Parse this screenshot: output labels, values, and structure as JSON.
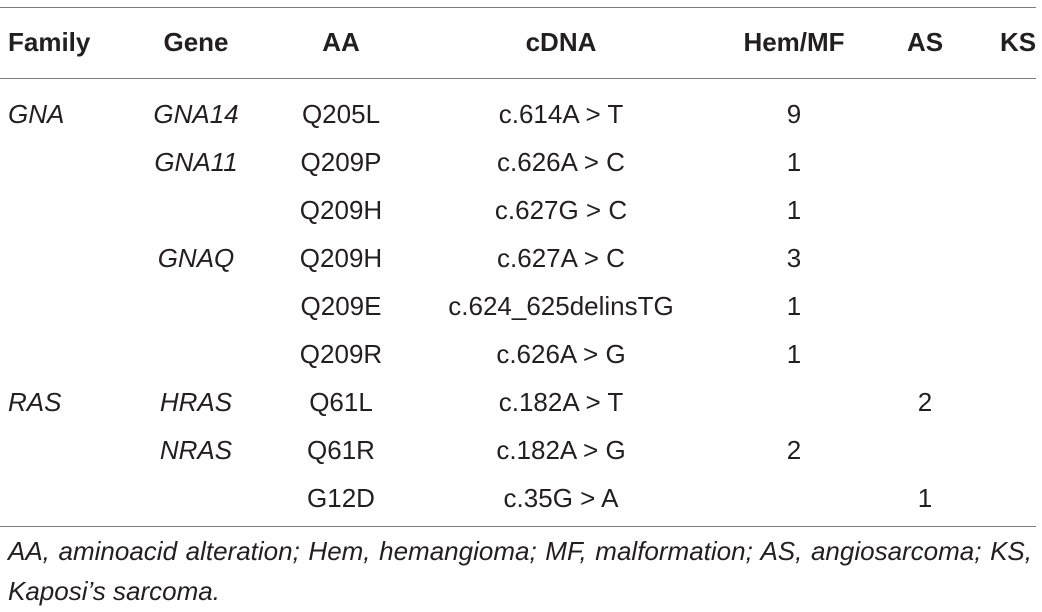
{
  "table": {
    "headers": {
      "family": "Family",
      "gene": "Gene",
      "aa": "AA",
      "cdna": "cDNA",
      "hem_mf": "Hem/MF",
      "as": "AS",
      "ks": "KS"
    },
    "rows": [
      {
        "family": "GNA",
        "gene": "GNA14",
        "aa": "Q205L",
        "cdna": "c.614A > T",
        "hem_mf": "9",
        "as": "",
        "ks": ""
      },
      {
        "family": "",
        "gene": "GNA11",
        "aa": "Q209P",
        "cdna": "c.626A > C",
        "hem_mf": "1",
        "as": "",
        "ks": ""
      },
      {
        "family": "",
        "gene": "",
        "aa": "Q209H",
        "cdna": "c.627G > C",
        "hem_mf": "1",
        "as": "",
        "ks": ""
      },
      {
        "family": "",
        "gene": "GNAQ",
        "aa": "Q209H",
        "cdna": "c.627A > C",
        "hem_mf": "3",
        "as": "",
        "ks": ""
      },
      {
        "family": "",
        "gene": "",
        "aa": "Q209E",
        "cdna": "c.624_625delinsTG",
        "hem_mf": "1",
        "as": "",
        "ks": ""
      },
      {
        "family": "",
        "gene": "",
        "aa": "Q209R",
        "cdna": "c.626A > G",
        "hem_mf": "1",
        "as": "",
        "ks": ""
      },
      {
        "family": "RAS",
        "gene": "HRAS",
        "aa": "Q61L",
        "cdna": "c.182A > T",
        "hem_mf": "",
        "as": "2",
        "ks": ""
      },
      {
        "family": "",
        "gene": "NRAS",
        "aa": "Q61R",
        "cdna": "c.182A > G",
        "hem_mf": "2",
        "as": "",
        "ks": ""
      },
      {
        "family": "",
        "gene": "",
        "aa": "G12D",
        "cdna": "c.35G > A",
        "hem_mf": "",
        "as": "1",
        "ks": ""
      }
    ],
    "footnote": "AA, aminoacid alteration; Hem, hemangioma; MF, malformation; AS, angiosarcoma; KS, Kaposi’s sarcoma."
  }
}
